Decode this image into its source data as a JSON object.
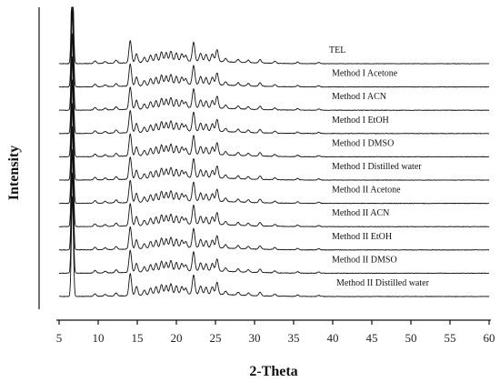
{
  "chart_data": {
    "type": "line",
    "xlabel": "2-Theta",
    "ylabel": "Intensity",
    "xlim": [
      5,
      60
    ],
    "xticks": [
      5,
      10,
      15,
      20,
      25,
      30,
      35,
      40,
      45,
      50,
      55,
      60
    ],
    "grid": false,
    "legend": "inline labels above each trace",
    "peaks_2theta": [
      6.7,
      9.6,
      10.9,
      12.3,
      14.1,
      14.9,
      15.9,
      16.7,
      17.4,
      18.1,
      18.7,
      19.3,
      20.0,
      20.7,
      21.2,
      22.2,
      23.1,
      23.8,
      24.6,
      25.2,
      26.3,
      27.9,
      29.2,
      30.7,
      32.6,
      35.5,
      38.2
    ],
    "peak_relative_intensity": [
      10,
      0.25,
      0.18,
      0.3,
      2.2,
      0.9,
      0.5,
      0.7,
      0.8,
      1.0,
      0.9,
      1.05,
      0.85,
      0.75,
      0.6,
      1.9,
      0.8,
      0.7,
      0.75,
      1.2,
      0.35,
      0.3,
      0.25,
      0.35,
      0.2,
      0.15,
      0.12
    ],
    "series": [
      {
        "name": "TEL"
      },
      {
        "name": "Method I Acetone"
      },
      {
        "name": "Method I ACN"
      },
      {
        "name": "Method I EtOH"
      },
      {
        "name": "Method I DMSO"
      },
      {
        "name": "Method I Distilled water"
      },
      {
        "name": "Method II Acetone"
      },
      {
        "name": "Method II ACN"
      },
      {
        "name": "Method II EtOH"
      },
      {
        "name": "Method II DMSO"
      },
      {
        "name": "Method II Distilled water"
      }
    ]
  }
}
